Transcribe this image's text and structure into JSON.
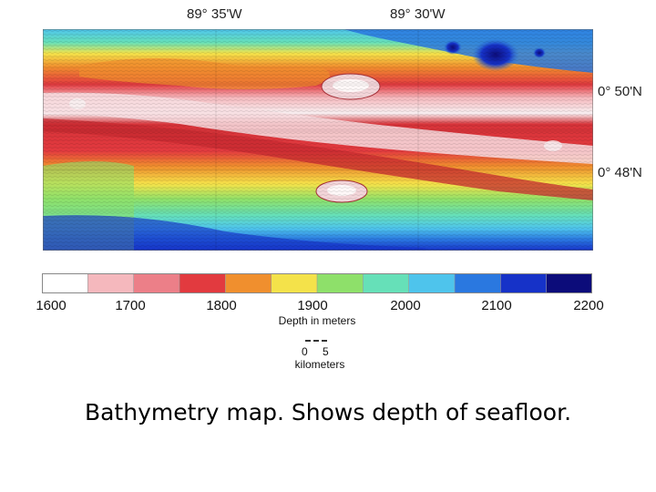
{
  "map": {
    "longitude_labels": [
      "89° 35'W",
      "89° 30'W"
    ],
    "latitude_labels": [
      "0° 50'N",
      "0° 48'N"
    ]
  },
  "legend": {
    "axis_title": "Depth in meters",
    "tick_labels": [
      "1600",
      "1700",
      "1800",
      "1900",
      "2000",
      "2100",
      "2200"
    ],
    "bin_colors": [
      "#ffffff",
      "#f5b8bd",
      "#ec7f88",
      "#e23a3f",
      "#f08f2e",
      "#f4e24a",
      "#8ee06a",
      "#66e0b8",
      "#4ec4ec",
      "#2a78e0",
      "#1632c8",
      "#0c0c7a"
    ]
  },
  "distance_scale": {
    "start_label": "0",
    "end_label": "5",
    "unit": "kilometers"
  },
  "caption": "Bathymetry map. Shows depth of seafloor."
}
